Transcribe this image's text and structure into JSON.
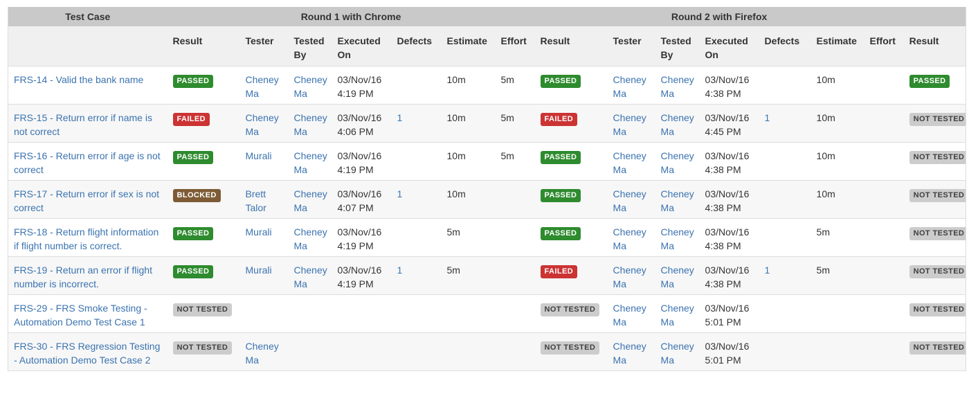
{
  "colors": {
    "passed": "#2e8b2e",
    "failed": "#cc3333",
    "blocked": "#7d5b35",
    "not_tested": "#cccccc",
    "link": "#3b73af",
    "group_header_bg": "#c9c9c9",
    "subheader_bg": "#f0f0f0"
  },
  "table": {
    "group_headers": [
      {
        "label": "Test Case",
        "span": 1
      },
      {
        "label": "Round 1 with Chrome",
        "span": 7
      },
      {
        "label": "Round 2 with Firefox",
        "span": 7
      },
      {
        "label": "",
        "span": 1
      }
    ],
    "round_columns": [
      "Result",
      "Tester",
      "Tested By",
      "Executed On",
      "Defects",
      "Estimate",
      "Effort"
    ],
    "final_column": "Result",
    "rows": [
      {
        "test_case": "FRS-14 - Valid the bank name",
        "rounds": [
          {
            "result": "PASSED",
            "tester": "Cheney Ma",
            "tested_by": "Cheney Ma",
            "executed_on": "03/Nov/16 4:19 PM",
            "defects": "",
            "estimate": "10m",
            "effort": "5m"
          },
          {
            "result": "PASSED",
            "tester": "Cheney Ma",
            "tested_by": "Cheney Ma",
            "executed_on": "03/Nov/16 4:38 PM",
            "defects": "",
            "estimate": "10m",
            "effort": ""
          }
        ],
        "final_result": "PASSED"
      },
      {
        "test_case": "FRS-15 - Return error if name is not correct",
        "rounds": [
          {
            "result": "FAILED",
            "tester": "Cheney Ma",
            "tested_by": "Cheney Ma",
            "executed_on": "03/Nov/16 4:06 PM",
            "defects": "1",
            "estimate": "10m",
            "effort": "5m"
          },
          {
            "result": "FAILED",
            "tester": "Cheney Ma",
            "tested_by": "Cheney Ma",
            "executed_on": "03/Nov/16 4:45 PM",
            "defects": "1",
            "estimate": "10m",
            "effort": ""
          }
        ],
        "final_result": "NOT TESTED"
      },
      {
        "test_case": "FRS-16 - Return error if age is not correct",
        "rounds": [
          {
            "result": "PASSED",
            "tester": "Murali",
            "tested_by": "Cheney Ma",
            "executed_on": "03/Nov/16 4:19 PM",
            "defects": "",
            "estimate": "10m",
            "effort": "5m"
          },
          {
            "result": "PASSED",
            "tester": "Cheney Ma",
            "tested_by": "Cheney Ma",
            "executed_on": "03/Nov/16 4:38 PM",
            "defects": "",
            "estimate": "10m",
            "effort": ""
          }
        ],
        "final_result": "NOT TESTED"
      },
      {
        "test_case": "FRS-17 - Return error if sex is not correct",
        "rounds": [
          {
            "result": "BLOCKED",
            "tester": "Brett Talor",
            "tested_by": "Cheney Ma",
            "executed_on": "03/Nov/16 4:07 PM",
            "defects": "1",
            "estimate": "10m",
            "effort": ""
          },
          {
            "result": "PASSED",
            "tester": "Cheney Ma",
            "tested_by": "Cheney Ma",
            "executed_on": "03/Nov/16 4:38 PM",
            "defects": "",
            "estimate": "10m",
            "effort": ""
          }
        ],
        "final_result": "NOT TESTED"
      },
      {
        "test_case": "FRS-18 - Return flight information if flight number is correct.",
        "rounds": [
          {
            "result": "PASSED",
            "tester": "Murali",
            "tested_by": "Cheney Ma",
            "executed_on": "03/Nov/16 4:19 PM",
            "defects": "",
            "estimate": "5m",
            "effort": ""
          },
          {
            "result": "PASSED",
            "tester": "Cheney Ma",
            "tested_by": "Cheney Ma",
            "executed_on": "03/Nov/16 4:38 PM",
            "defects": "",
            "estimate": "5m",
            "effort": ""
          }
        ],
        "final_result": "NOT TESTED"
      },
      {
        "test_case": "FRS-19 - Return an error if flight number is incorrect.",
        "rounds": [
          {
            "result": "PASSED",
            "tester": "Murali",
            "tested_by": "Cheney Ma",
            "executed_on": "03/Nov/16 4:19 PM",
            "defects": "1",
            "estimate": "5m",
            "effort": ""
          },
          {
            "result": "FAILED",
            "tester": "Cheney Ma",
            "tested_by": "Cheney Ma",
            "executed_on": "03/Nov/16 4:38 PM",
            "defects": "1",
            "estimate": "5m",
            "effort": ""
          }
        ],
        "final_result": "NOT TESTED"
      },
      {
        "test_case": "FRS-29 - FRS Smoke Testing - Automation Demo Test Case 1",
        "rounds": [
          {
            "result": "NOT TESTED",
            "tester": "",
            "tested_by": "",
            "executed_on": "",
            "defects": "",
            "estimate": "",
            "effort": ""
          },
          {
            "result": "NOT TESTED",
            "tester": "Cheney Ma",
            "tested_by": "Cheney Ma",
            "executed_on": "03/Nov/16 5:01 PM",
            "defects": "",
            "estimate": "",
            "effort": ""
          }
        ],
        "final_result": "NOT TESTED"
      },
      {
        "test_case": "FRS-30 - FRS Regression Testing - Automation Demo Test Case 2",
        "rounds": [
          {
            "result": "NOT TESTED",
            "tester": "Cheney Ma",
            "tested_by": "",
            "executed_on": "",
            "defects": "",
            "estimate": "",
            "effort": ""
          },
          {
            "result": "NOT TESTED",
            "tester": "Cheney Ma",
            "tested_by": "Cheney Ma",
            "executed_on": "03/Nov/16 5:01 PM",
            "defects": "",
            "estimate": "",
            "effort": ""
          }
        ],
        "final_result": "NOT TESTED"
      }
    ]
  }
}
